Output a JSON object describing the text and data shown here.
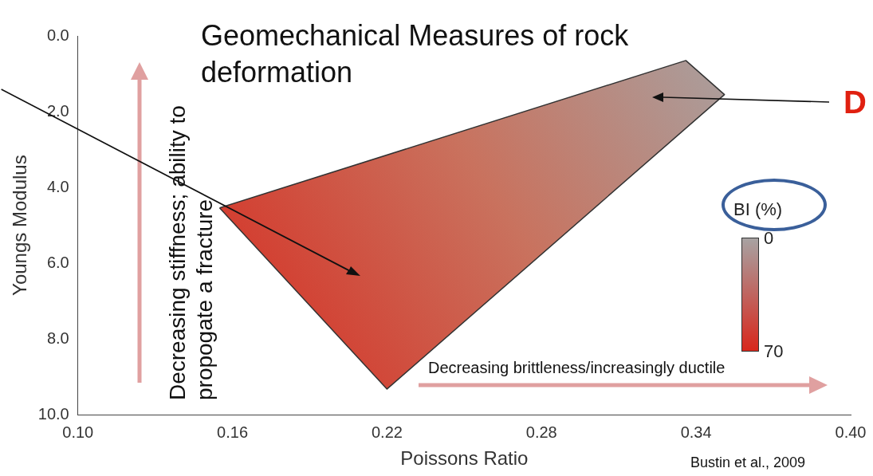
{
  "chart_data": {
    "type": "area",
    "title": "Geomechanical Measures of rock deformation",
    "xlabel": "Poissons Ratio",
    "ylabel": "Youngs Modulus",
    "xlim": [
      0.1,
      0.4
    ],
    "xticks": [
      {
        "value": 0.1,
        "label": "0.10"
      },
      {
        "value": 0.16,
        "label": "0.16"
      },
      {
        "value": 0.22,
        "label": "0.22"
      },
      {
        "value": 0.28,
        "label": "0.28"
      },
      {
        "value": 0.34,
        "label": "0.34"
      },
      {
        "value": 0.4,
        "label": "0.40"
      }
    ],
    "ylim": [
      10,
      0
    ],
    "yticks": [
      {
        "value": 0,
        "label": "0.0"
      },
      {
        "value": 2,
        "label": "2.0"
      },
      {
        "value": 4,
        "label": "4.0"
      },
      {
        "value": 6,
        "label": "6.0"
      },
      {
        "value": 8,
        "label": "8.0"
      },
      {
        "value": 10,
        "label": "10.0"
      }
    ],
    "series": [
      {
        "color": "#333333",
        "x": [
          0.155,
          0.22,
          0.351,
          0.336,
          0.155
        ],
        "values": [
          4.54,
          9.32,
          1.55,
          0.65,
          4.54
        ]
      }
    ],
    "annotations": [
      "Decreasing  stiffness; ability to propogate a fracture",
      "Decreasing brittleness/increasingly ductile",
      "D",
      "Bustin et al., 2009",
      "BI (%)",
      "0",
      "70"
    ],
    "grid": false,
    "legend": false,
    "marker": "none",
    "line_style": "solid"
  }
}
